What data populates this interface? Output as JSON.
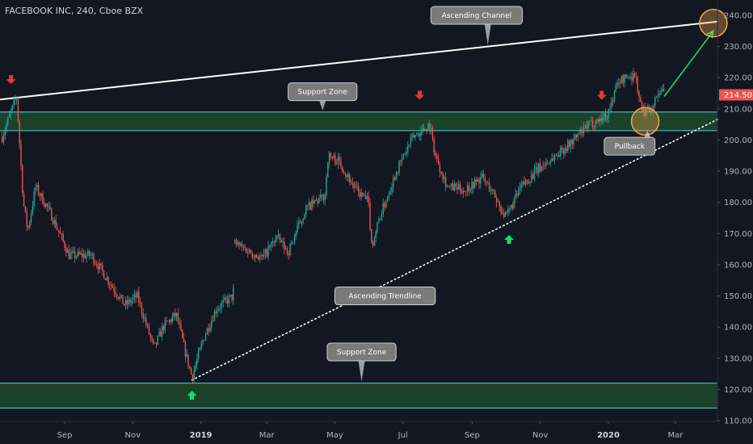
{
  "header": {
    "title": "FACEBOOK INC, 240, Cboe BZX"
  },
  "chart_data": {
    "type": "candlestick",
    "title": "FACEBOOK INC, 240, Cboe BZX",
    "ylim": [
      110,
      240
    ],
    "y_ticks": [
      "110.00",
      "120.00",
      "130.00",
      "140.00",
      "150.00",
      "160.00",
      "170.00",
      "180.00",
      "190.00",
      "200.00",
      "210.00",
      "220.00",
      "230.00",
      "240.00"
    ],
    "x_ticks": [
      {
        "label": "Sep",
        "date": "2018-09-01"
      },
      {
        "label": "Nov",
        "date": "2018-11-01"
      },
      {
        "label": "2019",
        "date": "2019-01-01"
      },
      {
        "label": "Mar",
        "date": "2019-03-01"
      },
      {
        "label": "May",
        "date": "2019-05-01"
      },
      {
        "label": "Jul",
        "date": "2019-07-01"
      },
      {
        "label": "Sep",
        "date": "2019-09-01"
      },
      {
        "label": "Nov",
        "date": "2019-11-01"
      },
      {
        "label": "2020",
        "date": "2020-01-01"
      },
      {
        "label": "Mar",
        "date": "2020-03-01"
      }
    ],
    "bold_x_ticks": [
      "2019",
      "2020"
    ],
    "last_price": "214.50",
    "colors": {
      "up": "#26a69a",
      "down": "#ef5350",
      "background": "#131722",
      "zone": "#1e4a2c",
      "zone_border": "#4dd0e1",
      "arrow_up": "#00e676",
      "arrow_down": "#e53935",
      "projection": "#00e676",
      "target_circle": "#f7a64a"
    },
    "price_path": [
      [
        "2018-07-07",
        201
      ],
      [
        "2018-07-20",
        214
      ],
      [
        "2018-07-26",
        180
      ],
      [
        "2018-07-30",
        171
      ],
      [
        "2018-08-06",
        185
      ],
      [
        "2018-08-20",
        176
      ],
      [
        "2018-09-05",
        163
      ],
      [
        "2018-09-25",
        163
      ],
      [
        "2018-10-10",
        155
      ],
      [
        "2018-10-25",
        147
      ],
      [
        "2018-11-05",
        150
      ],
      [
        "2018-11-20",
        133
      ],
      [
        "2018-11-28",
        140
      ],
      [
        "2018-12-10",
        144
      ],
      [
        "2018-12-18",
        132
      ],
      [
        "2018-12-24",
        124
      ],
      [
        "2019-01-04",
        137
      ],
      [
        "2019-01-15",
        146
      ],
      [
        "2019-01-30",
        150
      ],
      [
        "2019-01-31",
        167
      ],
      [
        "2019-02-10",
        165
      ],
      [
        "2019-02-25",
        162
      ],
      [
        "2019-03-10",
        169
      ],
      [
        "2019-03-20",
        164
      ],
      [
        "2019-04-05",
        178
      ],
      [
        "2019-04-22",
        182
      ],
      [
        "2019-04-25",
        195
      ],
      [
        "2019-05-05",
        193
      ],
      [
        "2019-05-20",
        184
      ],
      [
        "2019-05-31",
        180
      ],
      [
        "2019-06-03",
        166
      ],
      [
        "2019-06-10",
        175
      ],
      [
        "2019-06-25",
        190
      ],
      [
        "2019-07-10",
        201
      ],
      [
        "2019-07-25",
        205
      ],
      [
        "2019-07-30",
        195
      ],
      [
        "2019-08-10",
        185
      ],
      [
        "2019-08-25",
        184
      ],
      [
        "2019-09-10",
        188
      ],
      [
        "2019-09-20",
        183
      ],
      [
        "2019-10-01",
        175
      ],
      [
        "2019-10-15",
        185
      ],
      [
        "2019-10-31",
        191
      ],
      [
        "2019-11-15",
        195
      ],
      [
        "2019-12-01",
        200
      ],
      [
        "2019-12-15",
        205
      ],
      [
        "2019-12-31",
        208
      ],
      [
        "2020-01-10",
        219
      ],
      [
        "2020-01-25",
        221
      ],
      [
        "2020-01-31",
        209
      ],
      [
        "2020-02-10",
        211
      ],
      [
        "2020-02-15",
        216
      ],
      [
        "2020-02-20",
        214.5
      ]
    ],
    "annotations": [
      {
        "text": "Ascending Channel",
        "type": "line",
        "from": [
          "2018-07-05",
          213
        ],
        "to": [
          "2020-04-08",
          238
        ],
        "style": "solid"
      },
      {
        "text": "Support Zone",
        "type": "zone",
        "y": [
          203,
          209
        ]
      },
      {
        "text": "Support Zone",
        "type": "zone",
        "y": [
          114,
          122
        ]
      },
      {
        "text": "Ascending Trendline",
        "type": "line",
        "from": [
          "2018-12-24",
          123
        ],
        "to": [
          "2020-04-10",
          207
        ],
        "style": "dotted"
      },
      {
        "text": "Pullback",
        "type": "circle",
        "at": [
          "2020-02-03",
          206
        ]
      },
      {
        "text": "",
        "type": "projection",
        "from": [
          "2020-02-20",
          214
        ],
        "to": [
          "2020-04-04",
          235
        ]
      },
      {
        "text": "",
        "type": "circle",
        "at": [
          "2020-04-04",
          237.5
        ]
      }
    ],
    "callouts": [
      {
        "text": "Ascending Channel",
        "anchor_date": "2019-09-15",
        "anchor_value": 230.5,
        "box_date": "2019-09-05",
        "box_value": 240
      },
      {
        "text": "Support Zone",
        "anchor_date": "2019-04-20",
        "anchor_value": 209.5,
        "box_date": "2019-04-20",
        "box_value": 215.5
      },
      {
        "text": "Ascending Trendline",
        "anchor_date": "2019-05-10",
        "anchor_value": 150,
        "box_date": "2019-06-15",
        "box_value": 150
      },
      {
        "text": "Support Zone",
        "anchor_date": "2019-05-25",
        "anchor_value": 122.5,
        "box_date": "2019-05-25",
        "box_value": 132
      },
      {
        "text": "Pullback",
        "anchor_date": "2020-02-05",
        "anchor_value": 203,
        "box_date": "2020-01-20",
        "box_value": 198
      }
    ],
    "arrows": [
      {
        "direction": "down",
        "date": "2018-07-15",
        "value": 219.5
      },
      {
        "direction": "down",
        "date": "2019-07-16",
        "value": 214.5
      },
      {
        "direction": "down",
        "date": "2019-12-26",
        "value": 214.5
      },
      {
        "direction": "up",
        "date": "2018-12-24",
        "value": 118
      },
      {
        "direction": "up",
        "date": "2019-10-04",
        "value": 168
      }
    ]
  }
}
